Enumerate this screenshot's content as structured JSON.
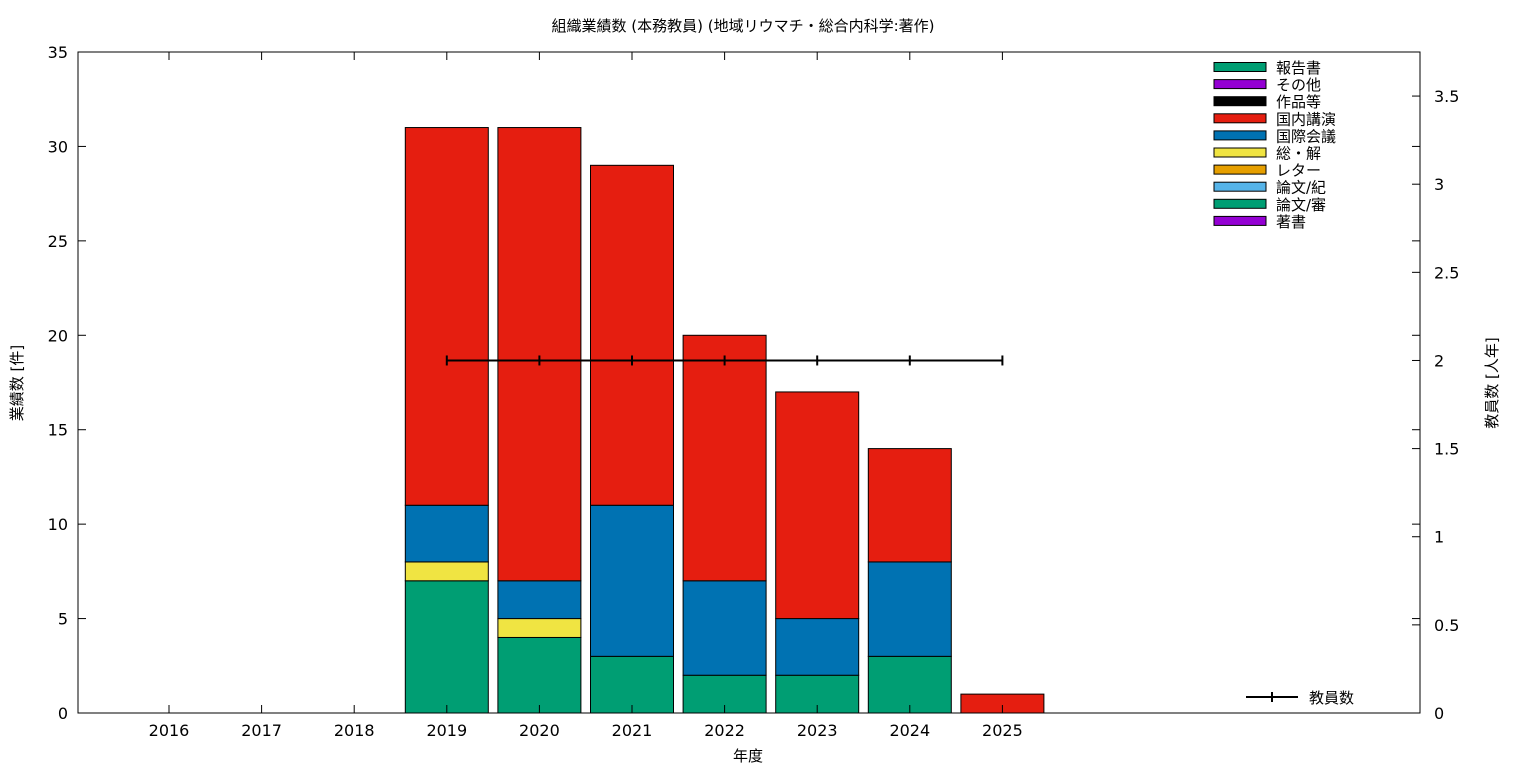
{
  "chart_data": {
    "type": "bar",
    "stacked": true,
    "title": "組織業績数 (本務教員) (地域リウマチ・総合内科学:著作)",
    "xlabel": "年度",
    "ylabel": "業績数 [件]",
    "y2label": "教員数 [人年]",
    "categories": [
      "2016",
      "2017",
      "2018",
      "2019",
      "2020",
      "2021",
      "2022",
      "2023",
      "2024",
      "2025"
    ],
    "ylim": [
      0,
      35
    ],
    "y2lim": [
      0,
      3.75
    ],
    "yticks": [
      0,
      5,
      10,
      15,
      20,
      25,
      30,
      35
    ],
    "y2ticks": [
      0,
      0.5,
      1,
      1.5,
      2,
      2.5,
      3,
      3.5
    ],
    "legend_position": "top-right",
    "series": [
      {
        "name": "著書",
        "color": "#9400d3",
        "values": [
          0,
          0,
          0,
          0,
          0,
          0,
          0,
          0,
          0,
          0
        ]
      },
      {
        "name": "論文/審",
        "color": "#009e73",
        "values": [
          0,
          0,
          0,
          7,
          4,
          3,
          2,
          2,
          3,
          0
        ]
      },
      {
        "name": "論文/紀",
        "color": "#56b4e9",
        "values": [
          0,
          0,
          0,
          0,
          0,
          0,
          0,
          0,
          0,
          0
        ]
      },
      {
        "name": "レター",
        "color": "#e69f00",
        "values": [
          0,
          0,
          0,
          0,
          0,
          0,
          0,
          0,
          0,
          0
        ]
      },
      {
        "name": "総・解",
        "color": "#f0e442",
        "values": [
          0,
          0,
          0,
          1,
          1,
          0,
          0,
          0,
          0,
          0
        ]
      },
      {
        "name": "国際会議",
        "color": "#0072b2",
        "values": [
          0,
          0,
          0,
          3,
          2,
          8,
          5,
          3,
          5,
          0
        ]
      },
      {
        "name": "国内講演",
        "color": "#e51e10",
        "values": [
          0,
          0,
          0,
          20,
          24,
          18,
          13,
          12,
          6,
          1
        ]
      },
      {
        "name": "作品等",
        "color": "#000000",
        "values": [
          0,
          0,
          0,
          0,
          0,
          0,
          0,
          0,
          0,
          0
        ]
      },
      {
        "name": "その他",
        "color": "#9400d3",
        "values": [
          0,
          0,
          0,
          0,
          0,
          0,
          0,
          0,
          0,
          0
        ]
      },
      {
        "name": "報告書",
        "color": "#009e73",
        "values": [
          0,
          0,
          0,
          0,
          0,
          0,
          0,
          0,
          0,
          0
        ]
      }
    ],
    "line_series": {
      "name": "教員数",
      "color": "#000000",
      "axis": "y2",
      "categories": [
        "2019",
        "2020",
        "2021",
        "2022",
        "2023",
        "2024",
        "2025"
      ],
      "values": [
        2,
        2,
        2,
        2,
        2,
        2,
        2
      ]
    },
    "legend_order": [
      "報告書",
      "その他",
      "作品等",
      "国内講演",
      "国際会議",
      "総・解",
      "レター",
      "論文/紀",
      "論文/審",
      "著書"
    ]
  }
}
